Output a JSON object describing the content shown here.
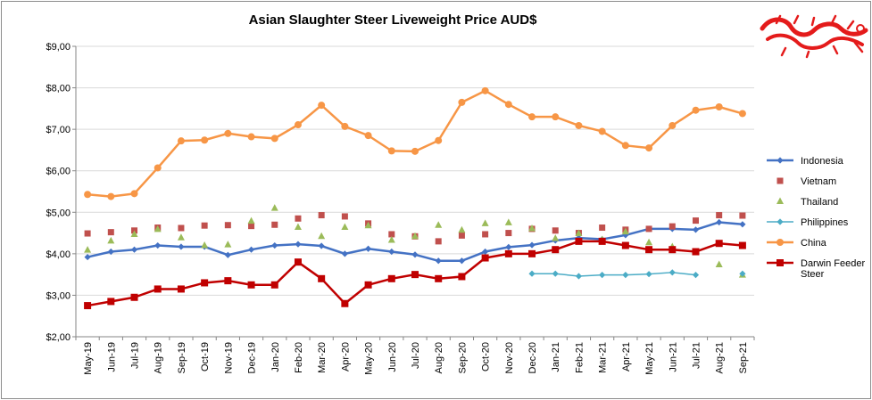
{
  "colors": {
    "Indonesia": "#4472C4",
    "Vietnam": "#C0504D",
    "Thailand": "#9BBB59",
    "Philippines": "#4BACC6",
    "China": "#F79646",
    "Darwin Feeder Steer": "#C00000",
    "gridline": "#d9d9d9",
    "logo": "#E41B1B"
  },
  "logo": {
    "icon": "red-dragon-logo"
  },
  "chart_data": {
    "type": "line",
    "title": "Asian Slaughter Steer Liveweight Price AUD$",
    "xlabel": "",
    "ylabel": "",
    "ylim": [
      2,
      9
    ],
    "yticks": [
      "$2,00",
      "$3,00",
      "$4,00",
      "$5,00",
      "$6,00",
      "$7,00",
      "$8,00",
      "$9,00"
    ],
    "grid": "horizontal",
    "legend_position": "right",
    "categories": [
      "May-19",
      "Jun-19",
      "Jul-19",
      "Aug-19",
      "Sep-19",
      "Oct-19",
      "Nov-19",
      "Dec-19",
      "Jan-20",
      "Feb-20",
      "Mar-20",
      "Apr-20",
      "May-20",
      "Jun-20",
      "Jul-20",
      "Aug-20",
      "Sep-20",
      "Oct-20",
      "Nov-20",
      "Dec-20",
      "Jan-21",
      "Feb-21",
      "Mar-21",
      "Apr-21",
      "May-21",
      "Jun-21",
      "Jul-21",
      "Aug-21",
      "Sep-21"
    ],
    "series": [
      {
        "name": "Indonesia",
        "style": "line-diamond",
        "values": [
          3.92,
          4.05,
          4.1,
          4.2,
          4.17,
          4.17,
          3.97,
          4.1,
          4.2,
          4.23,
          4.19,
          4.0,
          4.12,
          4.05,
          3.98,
          3.83,
          3.83,
          4.05,
          4.16,
          4.21,
          4.32,
          4.38,
          4.35,
          4.45,
          4.6,
          4.6,
          4.58,
          4.76,
          4.71
        ]
      },
      {
        "name": "Vietnam",
        "style": "marker-square",
        "values": [
          4.49,
          4.52,
          4.56,
          4.63,
          4.62,
          4.68,
          4.69,
          4.67,
          4.7,
          4.85,
          4.93,
          4.9,
          4.73,
          4.47,
          4.42,
          4.3,
          4.44,
          4.47,
          4.5,
          4.6,
          4.56,
          4.5,
          4.63,
          4.58,
          4.6,
          4.66,
          4.8,
          4.93,
          4.92
        ]
      },
      {
        "name": "Thailand",
        "style": "marker-triangle",
        "values": [
          4.09,
          4.31,
          4.47,
          4.59,
          4.39,
          4.2,
          4.22,
          4.79,
          5.1,
          4.64,
          4.42,
          4.64,
          4.68,
          4.33,
          4.42,
          4.69,
          4.57,
          4.73,
          4.75,
          4.61,
          4.37,
          4.49,
          4.34,
          4.53,
          4.27,
          4.17,
          null,
          3.74,
          3.49
        ]
      },
      {
        "name": "Philippines",
        "style": "line-diamond",
        "values": [
          null,
          null,
          null,
          null,
          null,
          null,
          null,
          null,
          null,
          null,
          null,
          null,
          null,
          null,
          null,
          null,
          null,
          null,
          null,
          3.52,
          3.52,
          3.46,
          3.49,
          3.49,
          3.51,
          3.55,
          3.49,
          null,
          3.52
        ]
      },
      {
        "name": "China",
        "style": "line-circle",
        "values": [
          5.43,
          5.38,
          5.45,
          6.07,
          6.72,
          6.74,
          6.9,
          6.82,
          6.78,
          7.11,
          7.58,
          7.07,
          6.85,
          6.48,
          6.47,
          6.73,
          7.65,
          7.93,
          7.6,
          7.3,
          7.3,
          7.09,
          6.95,
          6.61,
          6.55,
          7.09,
          7.46,
          7.54,
          7.38
        ]
      },
      {
        "name": "Darwin Feeder Steer",
        "legend_lines": [
          "Darwin Feeder",
          "Steer"
        ],
        "style": "line-square",
        "values": [
          2.75,
          2.85,
          2.95,
          3.15,
          3.15,
          3.3,
          3.35,
          3.25,
          3.25,
          3.8,
          3.4,
          2.8,
          3.25,
          3.4,
          3.5,
          3.4,
          3.45,
          3.9,
          4.0,
          4.0,
          4.1,
          4.3,
          4.3,
          4.2,
          4.1,
          4.1,
          4.05,
          4.25,
          4.2
        ]
      }
    ]
  }
}
